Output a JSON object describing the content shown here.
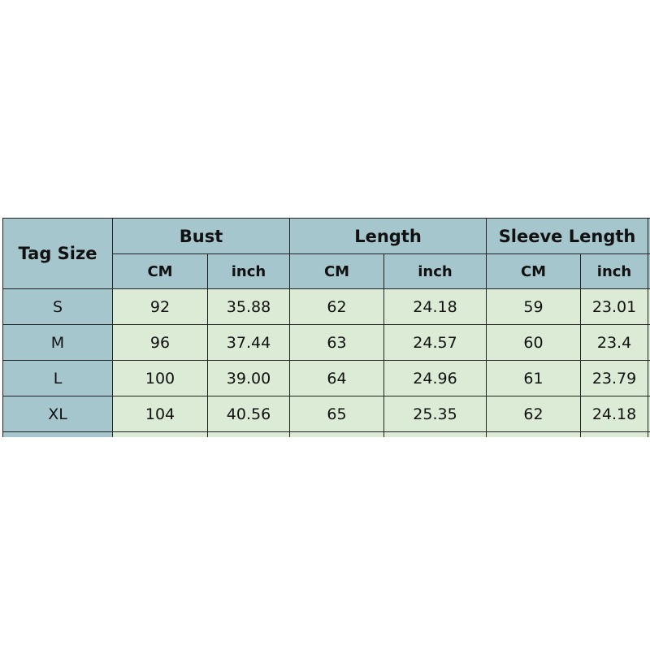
{
  "table": {
    "tag_size_label": "Tag Size",
    "groups": [
      "Bust",
      "Length",
      "Sleeve Length"
    ],
    "units": [
      "CM",
      "inch"
    ],
    "rows": [
      {
        "size": "S",
        "values": [
          "92",
          "35.88",
          "62",
          "24.18",
          "59",
          "23.01"
        ]
      },
      {
        "size": "M",
        "values": [
          "96",
          "37.44",
          "63",
          "24.57",
          "60",
          "23.4"
        ]
      },
      {
        "size": "L",
        "values": [
          "100",
          "39.00",
          "64",
          "24.96",
          "61",
          "23.79"
        ]
      },
      {
        "size": "XL",
        "values": [
          "104",
          "40.56",
          "65",
          "25.35",
          "62",
          "24.18"
        ]
      }
    ]
  },
  "colors": {
    "header": "#a6c6cd",
    "cell": "#dcebd5",
    "border": "#222222"
  }
}
